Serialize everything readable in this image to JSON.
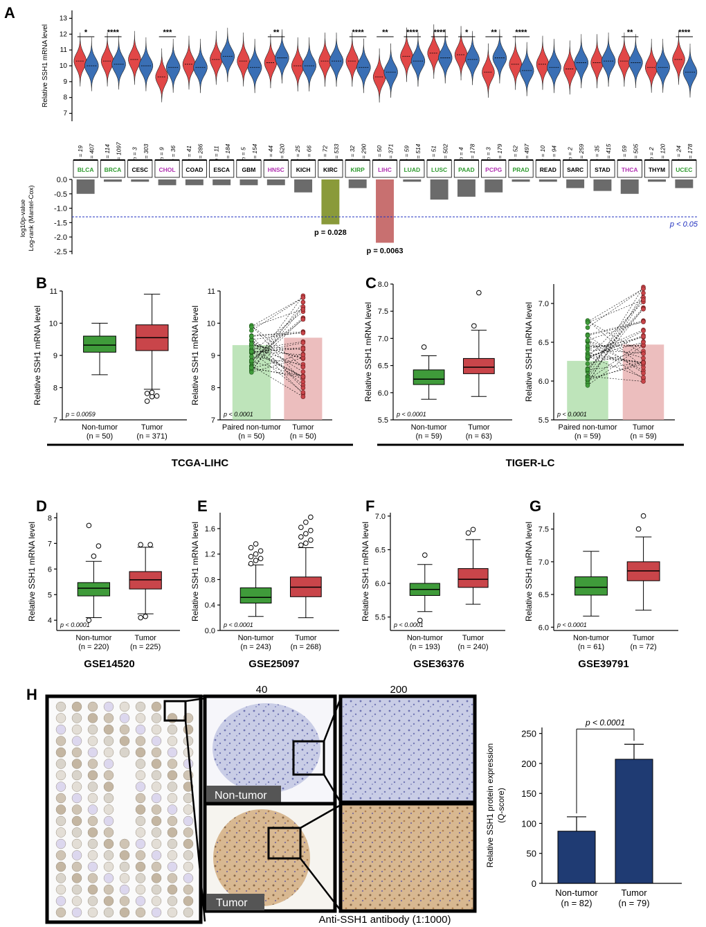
{
  "panel_letters": {
    "A": "A",
    "B": "B",
    "C": "C",
    "D": "D",
    "E": "E",
    "F": "F",
    "G": "G",
    "H": "H"
  },
  "colors": {
    "normal": "#3a6fb5",
    "tumor": "#e14747",
    "box_normal": "#3f9b3a",
    "box_tumor": "#c9454a",
    "bar_h": "#1f3b73",
    "kirc_bar": "#8a9a3a",
    "lihc_bar": "#c87070",
    "grey_bar": "#6b6b6b"
  },
  "chart_data": [
    {
      "id": "A_violin",
      "type": "violin",
      "ylabel": "Relative SSH1 mRNA level",
      "ylim": [
        6.5,
        13.5
      ],
      "yticks": [
        7,
        8,
        9,
        10,
        11,
        12,
        13
      ],
      "cancers": [
        {
          "name": "BLCA",
          "color": "#2e9a2e",
          "n": [
            "n = 19",
            "n = 407"
          ],
          "med": [
            10.3,
            10.0
          ],
          "sig": "*"
        },
        {
          "name": "BRCA",
          "color": "#2e9a2e",
          "n": [
            "n = 114",
            "n = 1097"
          ],
          "med": [
            10.3,
            10.1
          ],
          "sig": "****"
        },
        {
          "name": "CESC",
          "color": "#000000",
          "n": [
            "n = 3",
            "n = 303"
          ],
          "med": [
            10.4,
            10.0
          ],
          "sig": ""
        },
        {
          "name": "CHOL",
          "color": "#b030b0",
          "n": [
            "n = 9",
            "n = 36"
          ],
          "med": [
            9.3,
            9.9
          ],
          "sig": "***"
        },
        {
          "name": "COAD",
          "color": "#000000",
          "n": [
            "n = 41",
            "n = 286"
          ],
          "med": [
            10.1,
            9.9
          ],
          "sig": ""
        },
        {
          "name": "ESCA",
          "color": "#000000",
          "n": [
            "n = 11",
            "n = 184"
          ],
          "med": [
            10.4,
            10.6
          ],
          "sig": ""
        },
        {
          "name": "GBM",
          "color": "#000000",
          "n": [
            "n = 5",
            "n = 154"
          ],
          "med": [
            10.3,
            9.9
          ],
          "sig": ""
        },
        {
          "name": "HNSC",
          "color": "#b030b0",
          "n": [
            "n = 44",
            "n = 520"
          ],
          "med": [
            10.2,
            10.5
          ],
          "sig": "**"
        },
        {
          "name": "KICH",
          "color": "#000000",
          "n": [
            "n = 25",
            "n = 66"
          ],
          "med": [
            10.0,
            10.0
          ],
          "sig": ""
        },
        {
          "name": "KIRC",
          "color": "#000000",
          "n": [
            "n = 72",
            "n = 533"
          ],
          "med": [
            10.3,
            10.3
          ],
          "sig": ""
        },
        {
          "name": "KIRP",
          "color": "#2e9a2e",
          "n": [
            "n = 32",
            "n = 290"
          ],
          "med": [
            10.3,
            9.9
          ],
          "sig": "****"
        },
        {
          "name": "LIHC",
          "color": "#b030b0",
          "n": [
            "n = 50",
            "n = 371"
          ],
          "med": [
            9.3,
            9.6
          ],
          "sig": "**"
        },
        {
          "name": "LUAD",
          "color": "#2e9a2e",
          "n": [
            "n = 59",
            "n = 514"
          ],
          "med": [
            10.6,
            10.3
          ],
          "sig": "****"
        },
        {
          "name": "LUSC",
          "color": "#2e9a2e",
          "n": [
            "n = 51",
            "n = 502"
          ],
          "med": [
            10.8,
            10.5
          ],
          "sig": "****"
        },
        {
          "name": "PAAD",
          "color": "#2e9a2e",
          "n": [
            "n = 4",
            "n = 178"
          ],
          "med": [
            10.7,
            10.4
          ],
          "sig": "*"
        },
        {
          "name": "PCPG",
          "color": "#b030b0",
          "n": [
            "n = 3",
            "n = 179"
          ],
          "med": [
            9.6,
            10.5
          ],
          "sig": "**"
        },
        {
          "name": "PRAD",
          "color": "#2e9a2e",
          "n": [
            "n = 52",
            "n = 497"
          ],
          "med": [
            10.1,
            9.7
          ],
          "sig": "****"
        },
        {
          "name": "READ",
          "color": "#000000",
          "n": [
            "n = 10",
            "n = 94"
          ],
          "med": [
            10.1,
            9.9
          ],
          "sig": ""
        },
        {
          "name": "SARC",
          "color": "#000000",
          "n": [
            "n = 2",
            "n = 259"
          ],
          "med": [
            9.8,
            10.2
          ],
          "sig": ""
        },
        {
          "name": "STAD",
          "color": "#000000",
          "n": [
            "n = 35",
            "n = 415"
          ],
          "med": [
            10.2,
            10.3
          ],
          "sig": ""
        },
        {
          "name": "THCA",
          "color": "#b030b0",
          "n": [
            "n = 59",
            "n = 505"
          ],
          "med": [
            10.3,
            10.2
          ],
          "sig": "**"
        },
        {
          "name": "THYM",
          "color": "#000000",
          "n": [
            "n = 2",
            "n = 120"
          ],
          "med": [
            9.9,
            9.9
          ],
          "sig": ""
        },
        {
          "name": "UCEC",
          "color": "#2e9a2e",
          "n": [
            "n = 24",
            "n = 178"
          ],
          "med": [
            10.4,
            9.6
          ],
          "sig": "****"
        }
      ]
    },
    {
      "id": "A_bars",
      "type": "bar",
      "ylabel_line1": "log10p-value",
      "ylabel_line2": "Log-rank (Mantel-Cox)",
      "ylim": [
        -2.6,
        0
      ],
      "yticks": [
        "0.0",
        "-0.5",
        "-1.0",
        "-1.5",
        "-2.0",
        "-2.5"
      ],
      "values": [
        -0.5,
        -0.08,
        -0.08,
        -0.2,
        -0.2,
        -0.2,
        -0.2,
        -0.2,
        -0.45,
        -1.56,
        -0.3,
        -2.2,
        -0.08,
        -0.7,
        -0.6,
        -0.45,
        -0.08,
        -0.08,
        -0.3,
        -0.4,
        -0.5,
        -0.08,
        -0.3
      ],
      "threshold": -1.3,
      "threshold_label": "p < 0.05",
      "annotations": [
        {
          "cancer": "KIRC",
          "text": "p = 0.028"
        },
        {
          "cancer": "LIHC",
          "text": "p = 0.0063"
        }
      ]
    },
    {
      "id": "B_box",
      "type": "box",
      "ylabel": "Relative SSH1 mRNA level",
      "ylim": [
        7,
        11
      ],
      "yticks": [
        "7",
        "8",
        "9",
        "10",
        "11"
      ],
      "groups": [
        {
          "name": "Non-tumor",
          "n": "(n = 50)",
          "min": 8.4,
          "q1": 9.1,
          "med": 9.32,
          "q3": 9.6,
          "max": 10.0,
          "outliers": []
        },
        {
          "name": "Tumor",
          "n": "(n = 371)",
          "min": 7.95,
          "q1": 9.15,
          "med": 9.55,
          "q3": 9.95,
          "max": 10.9,
          "outliers": [
            7.58,
            7.72,
            7.74,
            7.82,
            7.85
          ]
        }
      ],
      "p": "p = 0.0059"
    },
    {
      "id": "B_paired",
      "type": "paired",
      "ylim": [
        7,
        11
      ],
      "yticks": [
        "7",
        "8",
        "9",
        "10",
        "11"
      ],
      "groups": [
        {
          "name": "Paired non-tumor",
          "n": "(n = 50)",
          "mean": 9.32,
          "lo": 8.4,
          "hi": 10.0
        },
        {
          "name": "Tumor",
          "n": "(n = 50)",
          "mean": 9.55,
          "lo": 7.55,
          "hi": 10.9
        }
      ],
      "p": "p < 0.0001"
    },
    {
      "id": "C_box",
      "type": "box",
      "ylabel": "Relative SSH1 mRNA level",
      "ylim": [
        5.5,
        8.0
      ],
      "yticks": [
        "5.5",
        "6.0",
        "6.5",
        "7.0",
        "7.5",
        "8.0"
      ],
      "groups": [
        {
          "name": "Non-tumor",
          "n": "(n = 59)",
          "min": 5.88,
          "q1": 6.15,
          "med": 6.25,
          "q3": 6.42,
          "max": 6.68,
          "outliers": [
            6.84
          ]
        },
        {
          "name": "Tumor",
          "n": "(n = 63)",
          "min": 5.93,
          "q1": 6.35,
          "med": 6.47,
          "q3": 6.63,
          "max": 7.15,
          "outliers": [
            7.23,
            7.84
          ]
        }
      ],
      "p": "p < 0.0001"
    },
    {
      "id": "C_paired",
      "type": "paired",
      "ylim": [
        5.5,
        7.25
      ],
      "yticks": [
        "5.5",
        "6.0",
        "6.5",
        "7.0"
      ],
      "groups": [
        {
          "name": "Paired non-tumor",
          "n": "(n = 59)",
          "mean": 6.26,
          "lo": 5.9,
          "hi": 6.82
        },
        {
          "name": "Tumor",
          "n": "(n = 59)",
          "mean": 6.47,
          "lo": 5.93,
          "hi": 7.23
        }
      ],
      "p": "p < 0.0001"
    },
    {
      "id": "D_box",
      "type": "box",
      "ylabel": "Relative SSH1 mRNA level",
      "ylim": [
        3.6,
        8.2
      ],
      "yticks": [
        "4",
        "5",
        "6",
        "7",
        "8"
      ],
      "groups": [
        {
          "name": "Non-tumor",
          "n": "(n = 220)",
          "min": 4.1,
          "q1": 4.95,
          "med": 5.25,
          "q3": 5.47,
          "max": 6.3,
          "outliers": [
            4.0,
            6.5,
            6.9,
            7.7
          ]
        },
        {
          "name": "Tumor",
          "n": "(n = 225)",
          "min": 4.25,
          "q1": 5.22,
          "med": 5.58,
          "q3": 5.9,
          "max": 6.85,
          "outliers": [
            4.1,
            4.15,
            6.95,
            6.95
          ]
        }
      ],
      "p": "p < 0.0001"
    },
    {
      "id": "E_box",
      "type": "box",
      "ylabel": "Relative SSH1 mRNA level",
      "ylim": [
        0.0,
        1.85
      ],
      "yticks": [
        "0.0",
        "0.4",
        "0.8",
        "1.2",
        "1.6"
      ],
      "groups": [
        {
          "name": "Non-tumor",
          "n": "(n = 243)",
          "min": 0.22,
          "q1": 0.43,
          "med": 0.52,
          "q3": 0.67,
          "max": 1.03,
          "outliers": [
            1.05,
            1.1,
            1.13,
            1.16,
            1.2,
            1.25,
            1.3,
            1.36
          ]
        },
        {
          "name": "Tumor",
          "n": "(n = 268)",
          "min": 0.2,
          "q1": 0.53,
          "med": 0.68,
          "q3": 0.84,
          "max": 1.3,
          "outliers": [
            1.34,
            1.37,
            1.42,
            1.47,
            1.52,
            1.57,
            1.62,
            1.7,
            1.78
          ]
        }
      ],
      "p": "p < 0.0001"
    },
    {
      "id": "F_box",
      "type": "box",
      "ylabel": "Relative SSH1 mRNA level",
      "ylim": [
        5.3,
        7.05
      ],
      "yticks": [
        "5.5",
        "6.0",
        "6.5",
        "7.0"
      ],
      "groups": [
        {
          "name": "Non-tumor",
          "n": "(n = 193)",
          "min": 5.58,
          "q1": 5.82,
          "med": 5.91,
          "q3": 6.0,
          "max": 6.28,
          "outliers": [
            5.45,
            6.42
          ]
        },
        {
          "name": "Tumor",
          "n": "(n = 240)",
          "min": 5.69,
          "q1": 5.94,
          "med": 6.06,
          "q3": 6.22,
          "max": 6.65,
          "outliers": [
            6.75,
            6.8
          ]
        }
      ],
      "p": "p < 0.0001"
    },
    {
      "id": "G_box",
      "type": "box",
      "ylabel": "Relative SSH1 mRNA level",
      "ylim": [
        5.95,
        7.75
      ],
      "yticks": [
        "6.0",
        "6.5",
        "7.0",
        "7.5"
      ],
      "groups": [
        {
          "name": "Non-tumor",
          "n": "(n = 61)",
          "min": 6.17,
          "q1": 6.49,
          "med": 6.61,
          "q3": 6.77,
          "max": 7.16,
          "outliers": []
        },
        {
          "name": "Tumor",
          "n": "(n = 72)",
          "min": 6.26,
          "q1": 6.71,
          "med": 6.86,
          "q3": 7.0,
          "max": 7.38,
          "outliers": [
            7.5,
            7.7
          ]
        }
      ],
      "p": "p < 0.0001"
    },
    {
      "id": "H_bar",
      "type": "bar",
      "ylabel_line1": "Relative SSH1 protein expression",
      "ylabel_line2": "(Q-score)",
      "ylim": [
        0,
        260
      ],
      "yticks": [
        "0",
        "50",
        "100",
        "150",
        "200",
        "250"
      ],
      "groups": [
        {
          "name": "Non-tumor",
          "n": "(n = 82)",
          "value": 87,
          "err": 24
        },
        {
          "name": "Tumor",
          "n": "(n = 79)",
          "value": 207,
          "err": 25
        }
      ],
      "p": "p < 0.0001"
    }
  ],
  "dataset_labels": {
    "tcga": "TCGA-LIHC",
    "tiger": "TIGER-LC",
    "d": "GSE14520",
    "e": "GSE25097",
    "f": "GSE36376",
    "g": "GSE39791"
  },
  "histology": {
    "mag_low": "40",
    "mag_high": "200",
    "nontumor_label": "Non-tumor",
    "tumor_label": "Tumor",
    "antibody": "Anti-SSH1 antibody (1:1000)"
  }
}
